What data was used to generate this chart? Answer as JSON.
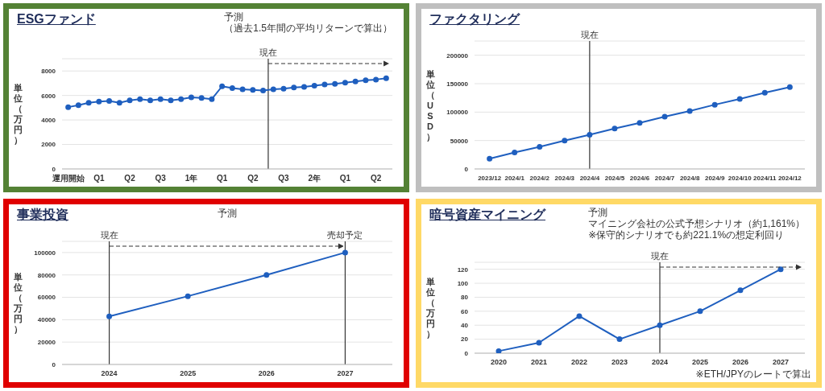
{
  "chart_data": [
    {
      "type": "line",
      "title": "ESGファンド",
      "ylabel": "単位（万円）",
      "categories": [
        "運用開始",
        null,
        null,
        "Q1",
        null,
        null,
        "Q2",
        null,
        null,
        "Q3",
        null,
        null,
        "1年",
        null,
        null,
        "Q1",
        null,
        null,
        "Q2",
        null,
        null,
        "Q3",
        null,
        null,
        "2年",
        null,
        null,
        "Q1",
        null,
        null,
        "Q2",
        null
      ],
      "values": [
        5050,
        5200,
        5400,
        5500,
        5550,
        5400,
        5600,
        5700,
        5600,
        5700,
        5600,
        5700,
        5850,
        5800,
        5700,
        6750,
        6600,
        6500,
        6450,
        6400,
        6500,
        6550,
        6650,
        6700,
        6800,
        6900,
        6950,
        7050,
        7150,
        7250,
        7300,
        7400
      ],
      "color": "#1f5fbf",
      "marker": "circle",
      "grid": "y",
      "ylim": [
        0,
        9000
      ],
      "yticks": [
        0,
        2000,
        4000,
        6000,
        8000
      ],
      "annotations": [
        "現在",
        "予測",
        "（過去1.5年間の平均リターンで算出）"
      ]
    },
    {
      "type": "line",
      "title": "ファクタリング",
      "ylabel": "単位（USD）",
      "categories": [
        "2023/12",
        "2024/1",
        "2024/2",
        "2024/3",
        "2024/4",
        "2024/5",
        "2024/6",
        "2024/7",
        "2024/8",
        "2024/9",
        "2024/10",
        "2024/11",
        "2024/12"
      ],
      "values": [
        18000,
        29000,
        39000,
        50000,
        60000,
        71000,
        81000,
        92000,
        102000,
        113000,
        123000,
        134000,
        144000
      ],
      "color": "#1f5fbf",
      "marker": "circle",
      "grid": "y",
      "ylim": [
        0,
        225000
      ],
      "yticks": [
        0,
        50000,
        100000,
        150000,
        200000
      ],
      "ref_lines": [
        {
          "axis": "x",
          "value": "2024/4",
          "label": "現在"
        }
      ]
    },
    {
      "type": "line",
      "title": "事業投資",
      "ylabel": "単位（万円）",
      "categories": [
        "2024",
        "2025",
        "2026",
        "2027"
      ],
      "values": [
        43000,
        61000,
        80000,
        100000
      ],
      "color": "#1f5fbf",
      "marker": "circle",
      "grid": "y",
      "ylim": [
        0,
        110000
      ],
      "yticks": [
        0,
        20000,
        40000,
        60000,
        80000,
        100000
      ],
      "ref_lines": [
        {
          "axis": "x",
          "value": "2024",
          "label": "現在"
        },
        {
          "axis": "x",
          "value": "2027",
          "label": "売却予定"
        }
      ],
      "annotations": [
        "予測"
      ]
    },
    {
      "type": "line",
      "title": "暗号資産マイニング",
      "ylabel": "単位（万円）",
      "categories": [
        "2020",
        "2021",
        "2022",
        "2023",
        "2024",
        "2025",
        "2026",
        "2027"
      ],
      "values": [
        3,
        15,
        53,
        20,
        40,
        60,
        90,
        120
      ],
      "color": "#1f5fbf",
      "marker": "circle",
      "grid": "y",
      "ylim": [
        0,
        130
      ],
      "yticks": [
        0,
        20,
        40,
        60,
        80,
        100,
        120
      ],
      "ref_lines": [
        {
          "axis": "x",
          "value": "2024",
          "label": "現在"
        }
      ],
      "annotations": [
        "予測",
        "マイニング会社の公式予想シナリオ（約1,161%）",
        "※保守的シナリオでも約221.1%の想定利回り",
        "※ETH/JPYのレートで算出"
      ]
    }
  ]
}
